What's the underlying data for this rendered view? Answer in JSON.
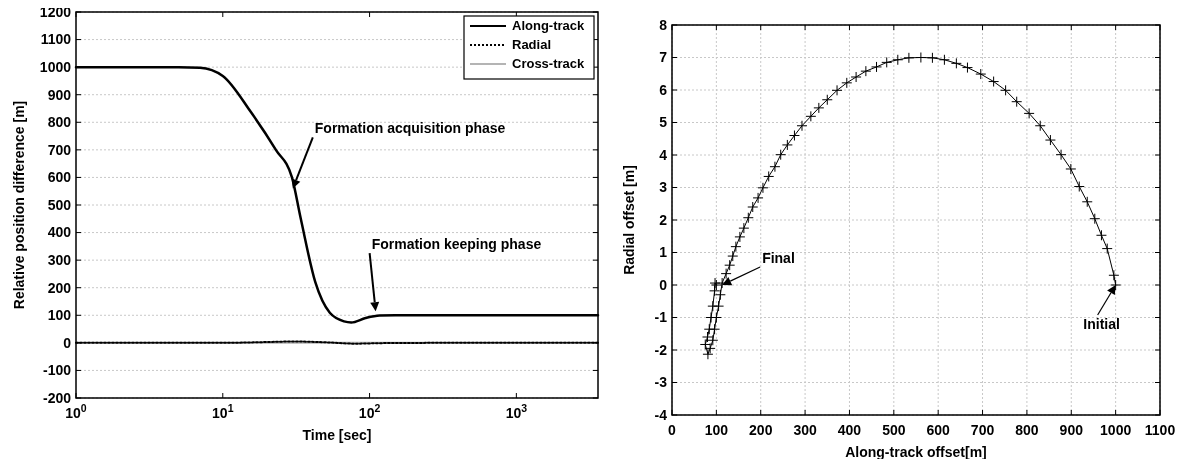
{
  "chart_data": [
    {
      "type": "line",
      "xlabel": "Time [sec]",
      "ylabel": "Relative position difference [m]",
      "log": "x",
      "grid": "y",
      "legend": "top right",
      "xlim": [
        1,
        3600
      ],
      "xticks": [
        {
          "value": 1,
          "label": "10$^{0}$"
        },
        {
          "value": 10,
          "label": "10$^{1}$"
        },
        {
          "value": 100,
          "label": "10$^{2}$"
        },
        {
          "value": 1000,
          "label": "10$^{3}$"
        }
      ],
      "ylim": [
        -200,
        1200
      ],
      "yticks": [
        -200,
        -100,
        0,
        100,
        200,
        300,
        400,
        500,
        600,
        700,
        800,
        900,
        1000,
        1100,
        1200
      ],
      "series": [
        {
          "name": "Along-track",
          "color": "#000000",
          "line_style": "solid",
          "x": [
            1,
            5,
            7,
            10,
            15.5,
            23,
            29.6,
            34,
            42.7,
            53.6,
            67,
            75,
            94,
            117,
            150,
            300,
            1000,
            3600
          ],
          "values": [
            1000,
            1000,
            998,
            968,
            838,
            700,
            600,
            450,
            220,
            109,
            78,
            74,
            90,
            99,
            100,
            100,
            100,
            100
          ]
        },
        {
          "name": "Radial",
          "color": "#000000",
          "line_style": "dotted",
          "x": [
            1,
            10,
            20,
            30,
            50,
            80,
            120,
            300,
            1000,
            3600
          ],
          "values": [
            0,
            0,
            3,
            5,
            2,
            -3,
            -1,
            0,
            0,
            0
          ]
        },
        {
          "name": "Cross-track",
          "color": "#b4b4b4",
          "line_style": "solid",
          "x": [
            1,
            10,
            100,
            1000,
            3600
          ],
          "values": [
            0,
            0,
            0,
            0,
            0
          ]
        }
      ],
      "annotations": [
        {
          "text": "Formation acquisition phase",
          "x": 30,
          "y": 560
        },
        {
          "text": "Formation keeping phase",
          "x": 110,
          "y": 115
        }
      ]
    },
    {
      "type": "line",
      "xlabel": "Along-track offset[m]",
      "ylabel": "Radial offset [m]",
      "grid": true,
      "marker": "cross",
      "xlim": [
        0,
        1100
      ],
      "xticks": [
        0,
        100,
        200,
        300,
        400,
        500,
        600,
        700,
        800,
        900,
        1000,
        1100
      ],
      "ylim": [
        -4,
        8
      ],
      "yticks": [
        -4,
        -3,
        -2,
        -1,
        0,
        1,
        2,
        3,
        4,
        5,
        6,
        7,
        8
      ],
      "series": [
        {
          "color": "#000000",
          "x": [
            1000,
            996,
            981,
            968,
            953,
            936,
            918,
            899,
            877,
            853,
            830,
            805,
            777,
            752,
            725,
            696,
            666,
            641,
            614,
            587,
            561,
            534,
            509,
            484,
            461,
            437,
            415,
            394,
            372,
            350,
            331,
            313,
            293,
            276,
            260,
            245,
            232,
            218,
            205,
            194,
            182,
            172,
            162,
            153,
            144,
            137,
            130,
            122,
            113,
            109,
            105,
            100,
            96,
            92,
            86,
            81,
            75,
            80,
            84,
            88,
            92,
            96,
            97,
            100
          ],
          "values": [
            0,
            0.3,
            1.12,
            1.53,
            2.04,
            2.56,
            3.03,
            3.57,
            4.01,
            4.46,
            4.9,
            5.28,
            5.64,
            5.99,
            6.26,
            6.49,
            6.69,
            6.82,
            6.93,
            6.99,
            7,
            6.99,
            6.93,
            6.85,
            6.71,
            6.58,
            6.4,
            6.22,
            5.99,
            5.7,
            5.45,
            5.19,
            4.9,
            4.6,
            4.31,
            4.01,
            3.64,
            3.34,
            2.99,
            2.68,
            2.4,
            2.07,
            1.75,
            1.48,
            1.18,
            0.89,
            0.61,
            0.35,
            0.06,
            -0.3,
            -0.65,
            -1,
            -1.36,
            -1.7,
            -1.95,
            -2.13,
            -1.83,
            -1.6,
            -1.36,
            -1,
            -0.65,
            -0.18,
            0.06,
            0
          ]
        }
      ],
      "annotations": [
        {
          "text": "Final",
          "x": 113,
          "y": 0
        },
        {
          "text": "Initial",
          "x": 1000,
          "y": 0
        }
      ]
    }
  ]
}
